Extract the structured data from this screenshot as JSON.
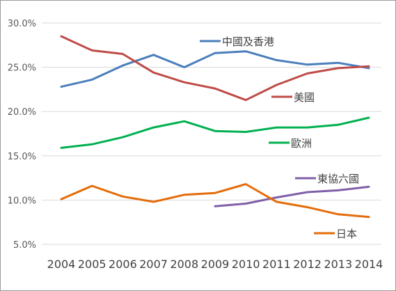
{
  "chart_data": {
    "type": "line",
    "title": "",
    "xlabel": "",
    "ylabel": "",
    "ylim": [
      5,
      30
    ],
    "y_ticks": [
      "5.0%",
      "10.0%",
      "15.0%",
      "20.0%",
      "25.0%",
      "30.0%"
    ],
    "y_tick_values": [
      5,
      10,
      15,
      20,
      25,
      30
    ],
    "categories": [
      "2004",
      "2005",
      "2006",
      "2007",
      "2008",
      "2009",
      "2010",
      "2011",
      "2012",
      "2013",
      "2014"
    ],
    "grid": true,
    "legend": "inline labels",
    "series": [
      {
        "name": "中國及香港",
        "color": "#4a7ebb",
        "values": [
          22.8,
          23.6,
          25.2,
          26.4,
          25.0,
          26.6,
          26.8,
          25.8,
          25.3,
          25.5,
          24.9
        ]
      },
      {
        "name": "美國",
        "color": "#be4b48",
        "values": [
          28.5,
          26.9,
          26.5,
          24.4,
          23.3,
          22.6,
          21.3,
          23.0,
          24.3,
          24.9,
          25.1
        ]
      },
      {
        "name": "歐洲",
        "color": "#00b050",
        "values": [
          15.9,
          16.3,
          17.1,
          18.2,
          18.9,
          17.8,
          17.7,
          18.2,
          18.2,
          18.5,
          19.3
        ]
      },
      {
        "name": "東協六國",
        "color": "#7f5fa9",
        "values": [
          null,
          null,
          null,
          null,
          null,
          9.3,
          9.6,
          10.3,
          10.9,
          11.1,
          11.5
        ]
      },
      {
        "name": "日本",
        "color": "#e46c0a",
        "values": [
          10.1,
          11.6,
          10.4,
          9.8,
          10.6,
          10.8,
          11.8,
          9.8,
          9.2,
          8.4,
          8.1
        ]
      }
    ]
  }
}
